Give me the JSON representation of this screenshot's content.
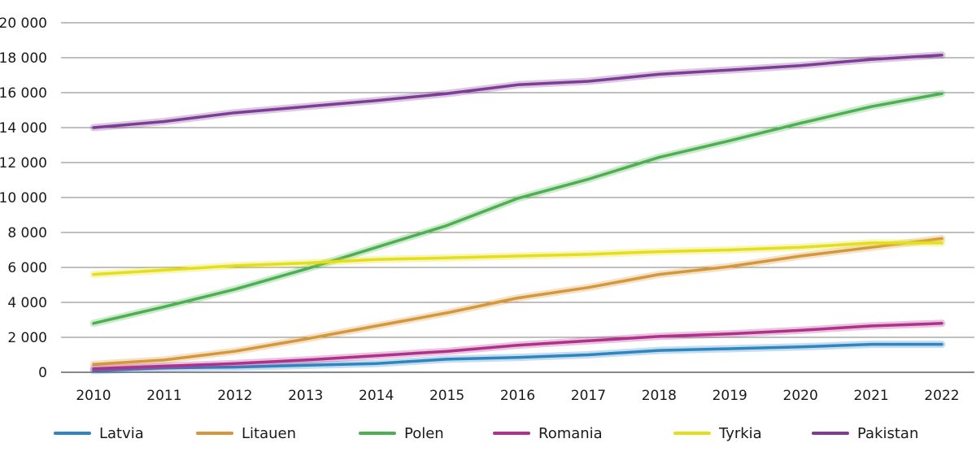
{
  "chart_data": {
    "type": "line",
    "title": "",
    "xlabel": "",
    "ylabel": "",
    "x": [
      "2010",
      "2011",
      "2012",
      "2013",
      "2014",
      "2015",
      "2016",
      "2017",
      "2018",
      "2019",
      "2020",
      "2021",
      "2022"
    ],
    "ylim": [
      0,
      20000
    ],
    "yticks": [
      0,
      2000,
      4000,
      6000,
      8000,
      10000,
      12000,
      14000,
      16000,
      18000,
      20000
    ],
    "ytick_labels": [
      "0",
      "2 000",
      "4 000",
      "6 000",
      "8 000",
      "10 000",
      "12 000",
      "14 000",
      "16 000",
      "18 000",
      "20 000"
    ],
    "grid": true,
    "legend_position": "bottom",
    "series": [
      {
        "name": "Latvia",
        "color": "#2e86c1",
        "values": [
          100,
          250,
          300,
          400,
          500,
          750,
          850,
          1000,
          1250,
          1350,
          1450,
          1600,
          1600
        ]
      },
      {
        "name": "Litauen",
        "color": "#d4983a",
        "values": [
          450,
          700,
          1200,
          1900,
          2650,
          3400,
          4250,
          4850,
          5600,
          6050,
          6650,
          7150,
          7650
        ]
      },
      {
        "name": "Polen",
        "color": "#4caf50",
        "values": [
          2800,
          3750,
          4750,
          5900,
          7150,
          8400,
          9950,
          11050,
          12300,
          13250,
          14250,
          15200,
          15950
        ]
      },
      {
        "name": "Romania",
        "color": "#b0308c",
        "values": [
          200,
          350,
          500,
          700,
          950,
          1200,
          1550,
          1800,
          2050,
          2200,
          2400,
          2650,
          2800
        ]
      },
      {
        "name": "Tyrkia",
        "color": "#e4df1a",
        "values": [
          5600,
          5850,
          6100,
          6250,
          6450,
          6550,
          6650,
          6750,
          6900,
          7000,
          7150,
          7400,
          7400
        ]
      },
      {
        "name": "Pakistan",
        "color": "#7e3c97",
        "values": [
          14000,
          14350,
          14850,
          15200,
          15550,
          15950,
          16450,
          16650,
          17050,
          17300,
          17550,
          17900,
          18150
        ]
      }
    ]
  }
}
